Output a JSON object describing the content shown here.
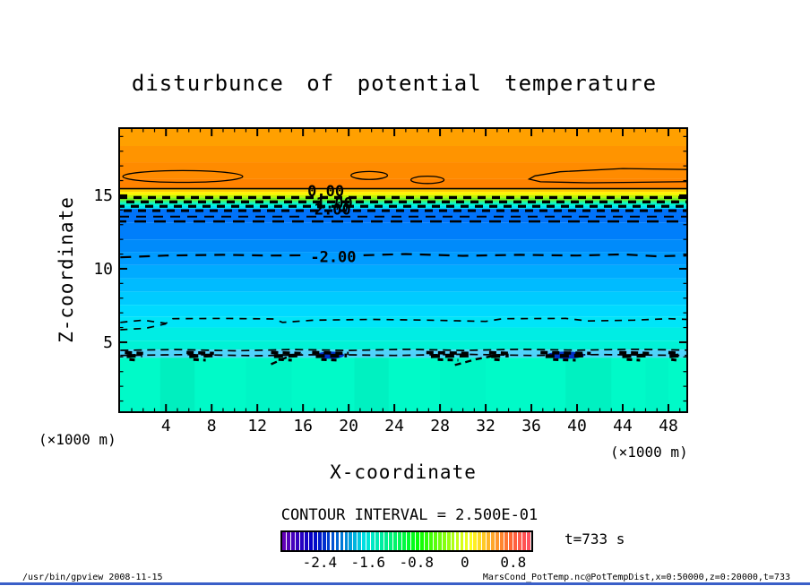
{
  "time_label": "t=733 s",
  "footer": {
    "left": "/usr/bin/gpview  2008-11-15",
    "right": "MarsCond_PotTemp.nc@PotTempDist,x=0:50000,z=0:20000,t=733",
    "rule_color": "#3A5FC8"
  },
  "chart_data": {
    "type": "filled_contour",
    "title": "disturbunce of potential temperature",
    "xlabel": "X-coordinate",
    "ylabel": "Z-coordinate",
    "axis_unit": "(×1000 m)",
    "contour_interval_label": "CONTOUR INTERVAL = 2.500E-01",
    "xlim": [
      -0.1,
      49.65
    ],
    "ylim": [
      0.24,
      19.57
    ],
    "x_major_ticks": [
      4,
      8,
      12,
      16,
      20,
      24,
      28,
      32,
      36,
      40,
      44,
      48
    ],
    "x_minor_step": 1,
    "y_major_ticks": [
      5,
      10,
      15
    ],
    "y_minor_step": 1,
    "grid": false,
    "bands": [
      [
        19.57,
        18.35,
        "#FFA000"
      ],
      [
        18.35,
        17.25,
        "#FF9400"
      ],
      [
        17.25,
        16.1,
        "#FF8B00"
      ],
      [
        16.1,
        15.42,
        "#FF8200"
      ],
      [
        15.42,
        15.22,
        "#FFCC00"
      ],
      [
        15.22,
        15.02,
        "#FFF500"
      ],
      [
        15.02,
        14.84,
        "#C3F500"
      ],
      [
        14.84,
        14.66,
        "#7CF520"
      ],
      [
        14.66,
        14.5,
        "#2EF584"
      ],
      [
        14.5,
        14.3,
        "#00F5C8"
      ],
      [
        14.3,
        14.08,
        "#00E0F5"
      ],
      [
        14.08,
        13.15,
        "#0072FA"
      ],
      [
        13.15,
        12.0,
        "#007EFA"
      ],
      [
        12.0,
        11.15,
        "#008BFA"
      ],
      [
        11.15,
        10.25,
        "#009BFF"
      ],
      [
        10.25,
        9.35,
        "#00ABFF"
      ],
      [
        9.35,
        8.45,
        "#00BBFF"
      ],
      [
        8.45,
        7.55,
        "#00CBFF"
      ],
      [
        7.55,
        6.75,
        "#00DAFF"
      ],
      [
        6.75,
        6.0,
        "#00E5F8"
      ],
      [
        6.0,
        5.1,
        "#00EDE4"
      ],
      [
        5.1,
        4.5,
        "#00F2D6"
      ],
      [
        4.5,
        3.95,
        "#4FD2FA"
      ],
      [
        3.95,
        0.24,
        "#00FAC8"
      ]
    ],
    "streaks": [
      [
        5,
        3,
        "rgba(0,200,160,0.22)"
      ],
      [
        13,
        4,
        "rgba(0,235,195,0.30)"
      ],
      [
        22,
        3,
        "rgba(0,205,165,0.20)"
      ],
      [
        30,
        4,
        "rgba(0,235,195,0.26)"
      ],
      [
        41,
        4,
        "rgba(0,205,165,0.20)"
      ],
      [
        47,
        2,
        "rgba(0,235,195,0.28)"
      ]
    ],
    "solid_line_z": 15.45,
    "solid_blobs": [
      [
        5.47,
        16.28,
        5.25,
        0.4
      ],
      [
        21.8,
        16.35,
        1.6,
        0.27
      ],
      [
        26.9,
        16.05,
        1.45,
        0.25
      ]
    ],
    "open_blob": [
      [
        49.65,
        16.75
      ],
      [
        44,
        16.82
      ],
      [
        38.5,
        16.6
      ],
      [
        36.3,
        16.32
      ],
      [
        35.8,
        16.1
      ],
      [
        36.8,
        15.92
      ],
      [
        41,
        15.85
      ],
      [
        45,
        15.88
      ],
      [
        49.65,
        15.93
      ]
    ],
    "dense_rows": [
      [
        14.85,
        3.4,
        "9 7",
        0
      ],
      [
        14.55,
        3.4,
        "9 7",
        8
      ],
      [
        14.25,
        3.2,
        "9 7",
        3
      ],
      [
        13.95,
        3.0,
        "9 7",
        11
      ],
      [
        13.55,
        2.0,
        "11 8",
        0
      ],
      [
        13.22,
        2.4,
        "13 9",
        5
      ]
    ],
    "dash_lines": [
      {
        "pts": [
          [
            0,
            10.78
          ],
          [
            4,
            10.9
          ],
          [
            9,
            10.95
          ],
          [
            13,
            10.9
          ],
          [
            16.3,
            10.92
          ]
        ],
        "sw": 2.2,
        "dash": "12 9"
      },
      {
        "pts": [
          [
            21.3,
            10.92
          ],
          [
            25,
            11.0
          ],
          [
            30,
            10.88
          ],
          [
            35,
            10.95
          ],
          [
            40,
            10.9
          ],
          [
            44,
            10.98
          ],
          [
            47,
            10.85
          ],
          [
            49.65,
            10.9
          ]
        ],
        "sw": 2.2,
        "dash": "12 9"
      },
      {
        "pts": [
          [
            0,
            6.35
          ],
          [
            2,
            6.5
          ],
          [
            4,
            6.28
          ],
          [
            4.6,
            6.6
          ],
          [
            9,
            6.62
          ],
          [
            13.5,
            6.58
          ],
          [
            14.2,
            6.35
          ],
          [
            17,
            6.5
          ],
          [
            22,
            6.55
          ],
          [
            27,
            6.5
          ],
          [
            32,
            6.42
          ],
          [
            33.5,
            6.6
          ],
          [
            39,
            6.62
          ],
          [
            41,
            6.45
          ],
          [
            45,
            6.5
          ],
          [
            48,
            6.6
          ],
          [
            49.65,
            6.55
          ]
        ],
        "sw": 1.7,
        "dash": "8 7"
      },
      {
        "pts": [
          [
            0,
            5.85
          ],
          [
            2.2,
            5.95
          ],
          [
            4,
            6.25
          ]
        ],
        "sw": 1.7,
        "dash": "8 7"
      },
      {
        "pts": [
          [
            0,
            4.45
          ],
          [
            5,
            4.5
          ],
          [
            10,
            4.42
          ],
          [
            15,
            4.5
          ],
          [
            20,
            4.44
          ],
          [
            25,
            4.52
          ],
          [
            30,
            4.44
          ],
          [
            35,
            4.52
          ],
          [
            40,
            4.46
          ],
          [
            45,
            4.52
          ],
          [
            49.65,
            4.46
          ]
        ],
        "sw": 1.7,
        "dash": "9 6"
      },
      {
        "pts": [
          [
            0,
            4.1
          ],
          [
            6,
            4.16
          ],
          [
            12,
            4.08
          ],
          [
            18,
            4.16
          ],
          [
            24,
            4.1
          ],
          [
            30,
            4.18
          ],
          [
            36,
            4.1
          ],
          [
            42,
            4.16
          ],
          [
            49.65,
            4.1
          ]
        ],
        "sw": 1.7,
        "dash": "9 6"
      },
      {
        "pts": [
          [
            13.2,
            3.5
          ],
          [
            14.5,
            3.95
          ],
          [
            15.9,
            4.2
          ]
        ],
        "sw": 2.4,
        "dash": "7 5"
      },
      {
        "pts": [
          [
            29.3,
            3.45
          ],
          [
            31.2,
            3.85
          ],
          [
            33.0,
            4.12
          ]
        ],
        "sw": 2.4,
        "dash": "7 5"
      }
    ],
    "spot_clusters": [
      [
        1.2,
        1.6,
        0
      ],
      [
        7.0,
        2.4,
        0
      ],
      [
        14.5,
        2.6,
        0
      ],
      [
        18.4,
        3.2,
        1
      ],
      [
        28.8,
        4.0,
        0
      ],
      [
        33.2,
        1.8,
        0
      ],
      [
        39.0,
        4.4,
        1
      ],
      [
        45.0,
        2.6,
        0
      ],
      [
        48.5,
        1.0,
        0
      ]
    ],
    "spot_core_color": "#0030C8",
    "contour_labels": [
      {
        "text": "0.00",
        "x": 18.0,
        "z": 14.93
      },
      {
        "text": "1.00",
        "x": 18.75,
        "z": 14.12
      },
      {
        "text": "2.00",
        "x": 18.6,
        "z": 13.7
      },
      {
        "text": "-2.00",
        "x": 18.65,
        "z": 10.45
      }
    ],
    "colorbar": {
      "vmin": -3.05,
      "vmax": 1.1,
      "n_stripes": 56,
      "tick_values": [
        -2.4,
        -1.6,
        -0.8,
        0,
        0.8
      ],
      "ticks": [
        "-2.4",
        "-1.6",
        "-0.8",
        "0",
        "0.8"
      ],
      "palette": {
        "hue_start": 272,
        "hue_end": -5,
        "light_start": 36,
        "light_end": 62
      }
    }
  }
}
